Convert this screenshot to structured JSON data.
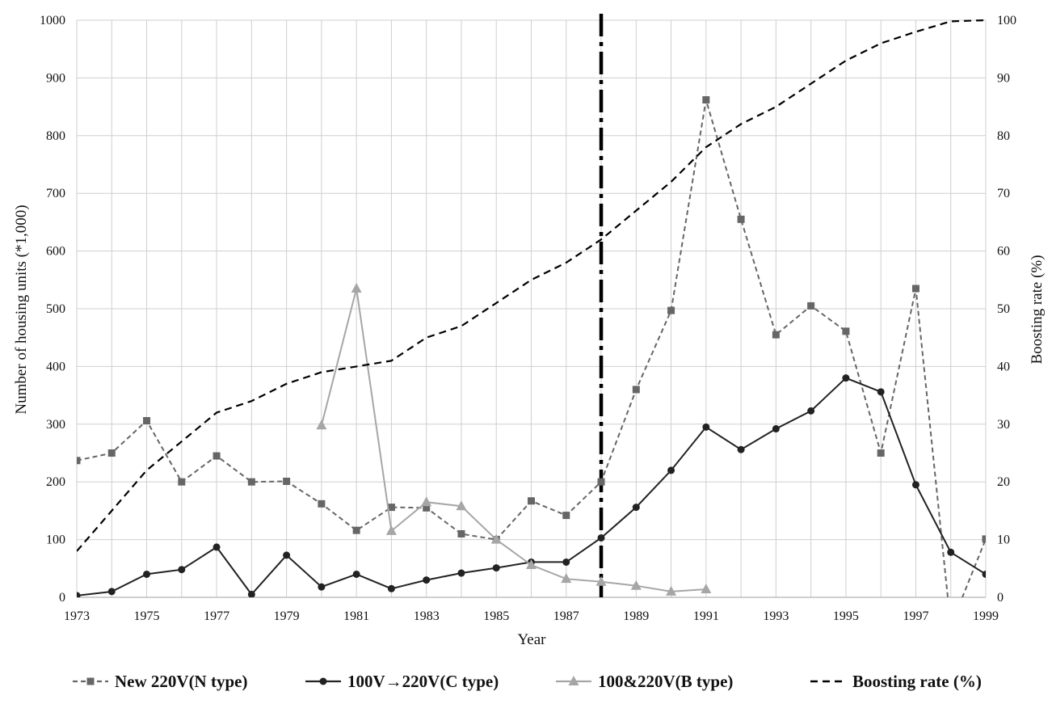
{
  "chart_data": {
    "type": "line",
    "title": "",
    "x_label": "Year",
    "y_label_left": "Number of housing units (*1,000)",
    "y_label_right": "Boosting rate (%)",
    "x_range": [
      1973,
      1999
    ],
    "x_tick_labels": [
      "1973",
      "1975",
      "1977",
      "1979",
      "1981",
      "1983",
      "1985",
      "1987",
      "1989",
      "1991",
      "1993",
      "1995",
      "1997",
      "1999"
    ],
    "y_left_range": [
      0,
      1000
    ],
    "y_left_ticks": [
      "0",
      "100",
      "200",
      "300",
      "400",
      "500",
      "600",
      "700",
      "800",
      "900",
      "1000"
    ],
    "y_right_range": [
      0,
      100
    ],
    "y_right_ticks": [
      "0",
      "10",
      "20",
      "30",
      "40",
      "50",
      "60",
      "70",
      "80",
      "90",
      "100"
    ],
    "grid": true,
    "reference_line": {
      "x": 1988,
      "style": "dash-dot"
    },
    "legend_position": "bottom",
    "series": [
      {
        "name": "New 220V(N type)",
        "axis": "left",
        "color": "#666666",
        "line": "dashed",
        "marker": "square",
        "x": [
          1973,
          1974,
          1975,
          1976,
          1977,
          1978,
          1979,
          1980,
          1981,
          1982,
          1983,
          1984,
          1985,
          1986,
          1987,
          1988,
          1989,
          1990,
          1991,
          1992,
          1993,
          1994,
          1995,
          1996,
          1997,
          1998,
          1999
        ],
        "values": [
          237,
          250,
          306,
          200,
          245,
          200,
          201,
          162,
          116,
          156,
          155,
          110,
          100,
          167,
          142,
          200,
          360,
          497,
          862,
          655,
          455,
          505,
          461,
          250,
          535,
          -50,
          101
        ]
      },
      {
        "name": "100V→220V(C type)",
        "axis": "left",
        "color": "#222222",
        "line": "solid",
        "marker": "circle",
        "x": [
          1973,
          1974,
          1975,
          1976,
          1977,
          1978,
          1979,
          1980,
          1981,
          1982,
          1983,
          1984,
          1985,
          1986,
          1987,
          1988,
          1989,
          1990,
          1991,
          1992,
          1993,
          1994,
          1995,
          1996,
          1997,
          1998,
          1999
        ],
        "values": [
          3,
          10,
          40,
          48,
          87,
          5,
          73,
          18,
          40,
          15,
          30,
          42,
          51,
          61,
          61,
          103,
          156,
          220,
          295,
          256,
          292,
          323,
          380,
          356,
          195,
          78,
          40
        ]
      },
      {
        "name": "100&220V(B type)",
        "axis": "left",
        "color": "#a6a6a6",
        "line": "solid",
        "marker": "triangle",
        "x": [
          1980,
          1981,
          1982,
          1983,
          1984,
          1985,
          1986,
          1987,
          1988,
          1989,
          1990,
          1991
        ],
        "values": [
          298,
          535,
          115,
          165,
          158,
          100,
          56,
          32,
          27,
          20,
          10,
          14
        ]
      },
      {
        "name": "Boosting rate (%)",
        "axis": "right",
        "color": "#000000",
        "line": "dashed",
        "marker": "none",
        "x": [
          1973,
          1974,
          1975,
          1976,
          1977,
          1978,
          1979,
          1980,
          1981,
          1982,
          1983,
          1984,
          1985,
          1986,
          1987,
          1988,
          1989,
          1990,
          1991,
          1992,
          1993,
          1994,
          1995,
          1996,
          1997,
          1998,
          1999
        ],
        "values": [
          8,
          15,
          22,
          27,
          32,
          34,
          37,
          39,
          40,
          41,
          45,
          47,
          51,
          55,
          58,
          62,
          67,
          72,
          78,
          82,
          85,
          89,
          93,
          96,
          98,
          99.8,
          100
        ]
      }
    ]
  }
}
